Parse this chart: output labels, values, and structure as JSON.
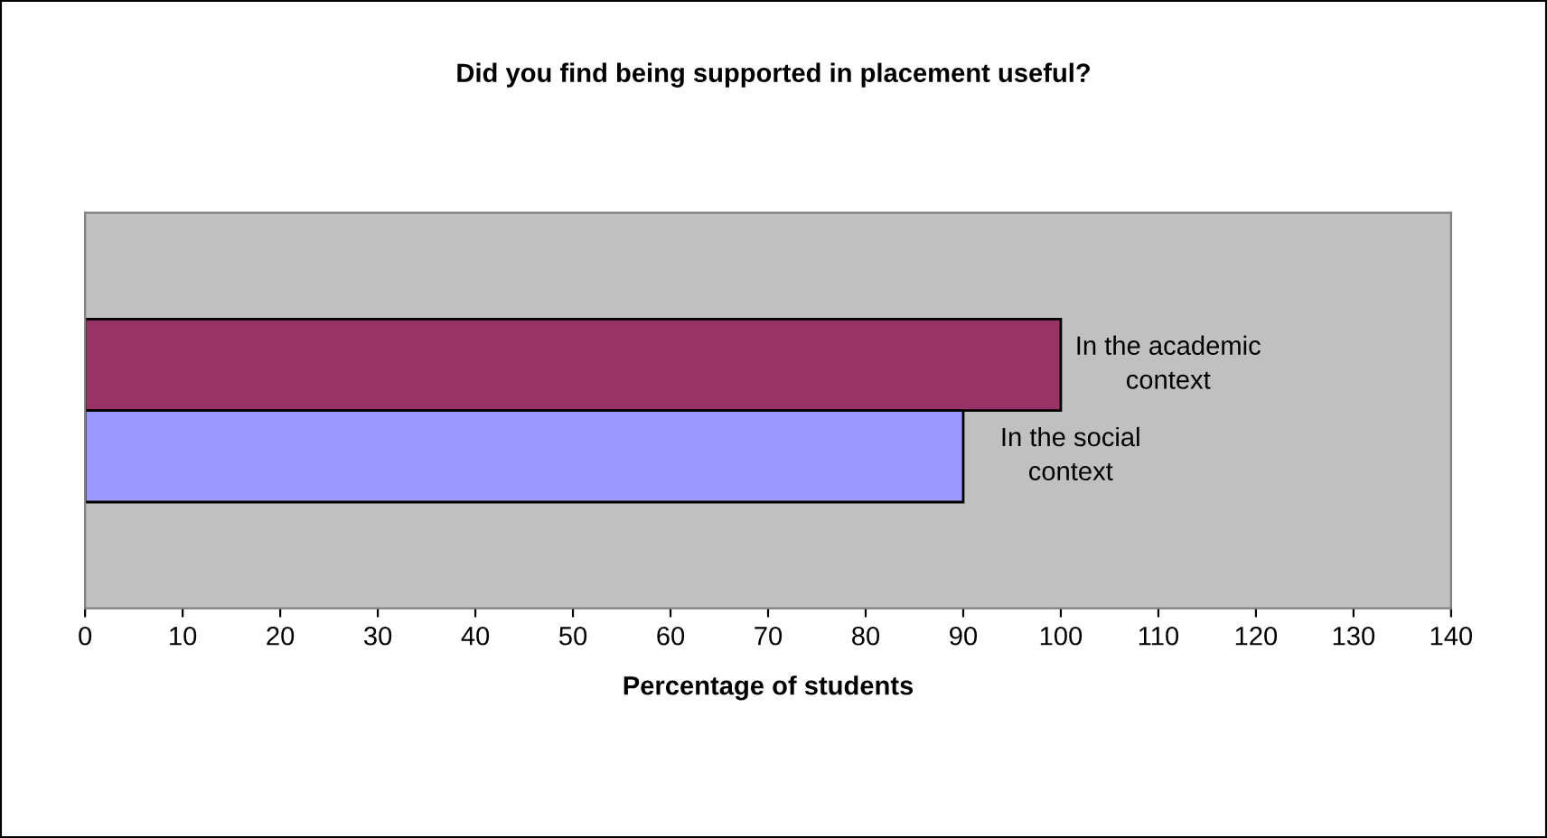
{
  "chart_data": {
    "type": "bar",
    "orientation": "horizontal",
    "title": "Did you find being supported in placement useful?",
    "xlabel": "Percentage of students",
    "categories": [
      null
    ],
    "series": [
      {
        "name": "In the academic context",
        "color": "#993366",
        "values": [
          100
        ]
      },
      {
        "name": "In the social context",
        "color": "#9999ff",
        "values": [
          90
        ]
      }
    ],
    "xlim": [
      0,
      140
    ],
    "xticks": [
      0,
      10,
      20,
      30,
      40,
      50,
      60,
      70,
      80,
      90,
      100,
      110,
      120,
      130,
      140
    ],
    "grid": false,
    "legend": false
  }
}
